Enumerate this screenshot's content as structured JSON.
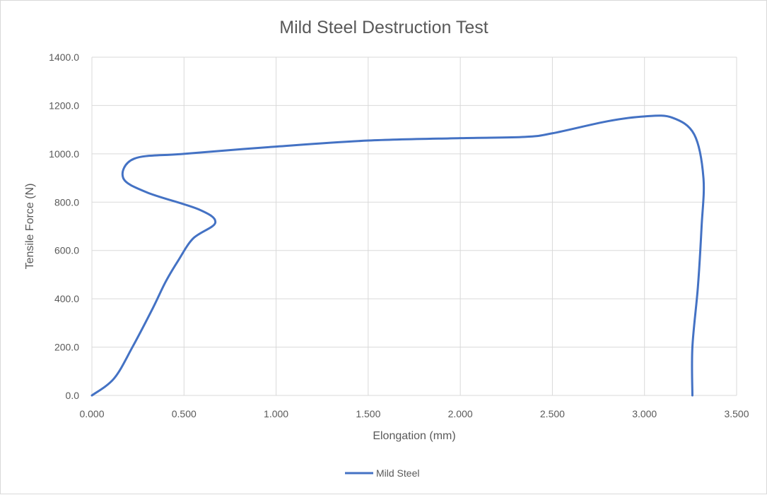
{
  "chart_data": {
    "type": "scatter",
    "title": "Mild Steel Destruction Test",
    "xlabel": "Elongation (mm)",
    "ylabel": "Tensile Force (N)",
    "xlim": [
      0,
      3.5
    ],
    "ylim": [
      0,
      1400
    ],
    "x_ticks": [
      "0.000",
      "0.500",
      "1.000",
      "1.500",
      "2.000",
      "2.500",
      "3.000",
      "3.500"
    ],
    "y_ticks": [
      "0.0",
      "200.0",
      "400.0",
      "600.0",
      "800.0",
      "1000.0",
      "1200.0",
      "1400.0"
    ],
    "grid": true,
    "legend_position": "bottom",
    "series": [
      {
        "name": "Mild Steel",
        "color": "#4472c4",
        "smooth": true,
        "points": [
          [
            0.0,
            0
          ],
          [
            0.12,
            70
          ],
          [
            0.22,
            200
          ],
          [
            0.33,
            360
          ],
          [
            0.4,
            470
          ],
          [
            0.47,
            560
          ],
          [
            0.55,
            650
          ],
          [
            0.67,
            715
          ],
          [
            0.58,
            770
          ],
          [
            0.3,
            840
          ],
          [
            0.17,
            900
          ],
          [
            0.23,
            980
          ],
          [
            0.5,
            1000
          ],
          [
            1.0,
            1030
          ],
          [
            1.5,
            1055
          ],
          [
            2.0,
            1065
          ],
          [
            2.35,
            1070
          ],
          [
            2.5,
            1085
          ],
          [
            2.8,
            1135
          ],
          [
            3.0,
            1155
          ],
          [
            3.15,
            1150
          ],
          [
            3.27,
            1080
          ],
          [
            3.32,
            900
          ],
          [
            3.31,
            700
          ],
          [
            3.29,
            450
          ],
          [
            3.26,
            200
          ],
          [
            3.26,
            0
          ]
        ]
      }
    ]
  }
}
